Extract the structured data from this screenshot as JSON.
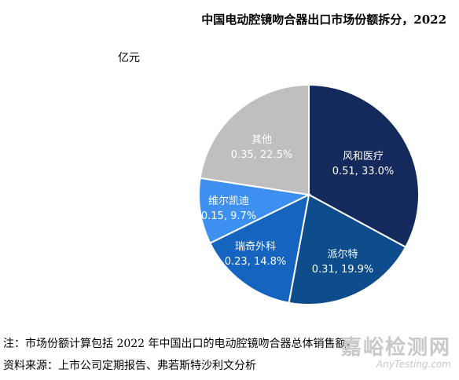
{
  "chart_data": {
    "type": "pie",
    "title": "中国电动腔镜吻合器出口市场份额拆分，2022",
    "unit": "亿元",
    "slices": [
      {
        "name": "风和医疗",
        "value": 0.51,
        "percent": "33.0%",
        "color": "#142a5c"
      },
      {
        "name": "派尔特",
        "value": 0.31,
        "percent": "19.9%",
        "color": "#0e4d8c"
      },
      {
        "name": "瑞奇外科",
        "value": 0.23,
        "percent": "14.8%",
        "color": "#1565c0"
      },
      {
        "name": "维尔凯迪",
        "value": 0.15,
        "percent": "9.7%",
        "color": "#3d8ff0"
      },
      {
        "name": "其他",
        "value": 0.35,
        "percent": "22.5%",
        "color": "#bfbfbf"
      }
    ]
  },
  "notes": {
    "note1": "注：市场份额计算包括 2022 年中国出口的电动腔镜吻合器总体销售额。",
    "note2": "资料来源：上市公司定期报告、弗若斯特沙利文分析"
  },
  "watermark": {
    "cn": "嘉峪检测网",
    "en": "AnyTesting.com"
  }
}
